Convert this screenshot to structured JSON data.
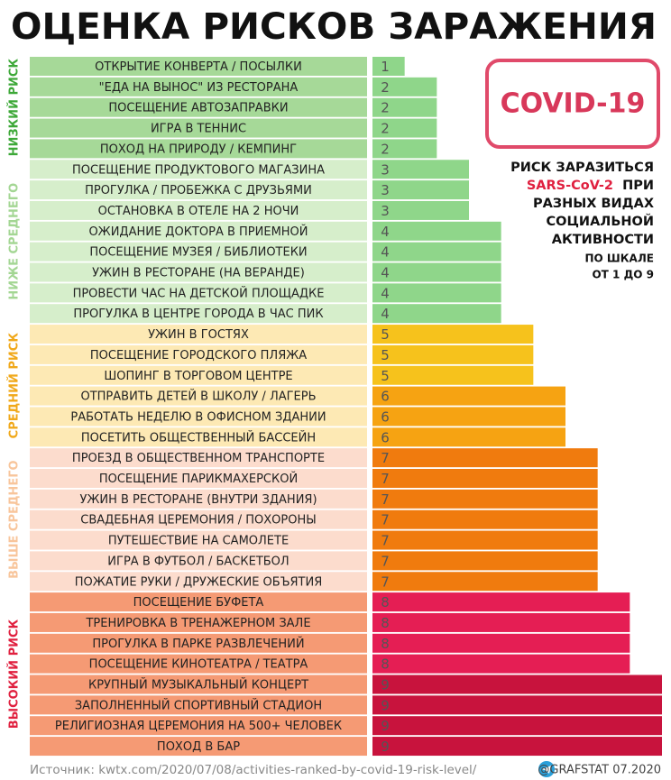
{
  "chart_data": {
    "type": "bar",
    "title": "ОЦЕНКА РИСКОВ ЗАРАЖЕНИЯ",
    "xlim": [
      0,
      9
    ],
    "stamp": "COVID-19",
    "note": [
      "РИСК ЗАРАЗИТЬСЯ",
      "SARS-CoV-2",
      "ПРИ",
      "РАЗНЫХ ВИДАХ",
      "СОЦИАЛЬНОЙ",
      "АКТИВНОСТИ"
    ],
    "scale_note": [
      "ПО ШКАЛЕ",
      "ОТ 1 ДО 9"
    ],
    "source": "Источник: kwtx.com/2020/07/08/activities-ranked-by-covid-19-risk-level/",
    "credit": "@GRAFSTAT 07.2020",
    "groups": [
      {
        "name": "НИЗКИЙ РИСК",
        "name_color": "#3da838",
        "color": "#a6d998",
        "categories": [
          "ОТКРЫТИЕ КОНВЕРТА / ПОСЫЛКИ",
          "\"ЕДА НА ВЫНОС\" ИЗ РЕСТОРАНА",
          "ПОСЕЩЕНИЕ АВТОЗАПРАВКИ",
          "ИГРА В ТЕННИС",
          "ПОХОД НА ПРИРОДУ / КЕМПИНГ"
        ],
        "values": [
          1,
          2,
          2,
          2,
          2
        ],
        "bar_colors": [
          "#8fd68a",
          "#8fd68a",
          "#8fd68a",
          "#8fd68a",
          "#8fd68a"
        ]
      },
      {
        "name": "НИЖЕ СРЕДНЕГО",
        "name_color": "#a3d693",
        "color": "#d6eecb",
        "categories": [
          "ПОСЕЩЕНИЕ ПРОДУКТОВОГО МАГАЗИНА",
          "ПРОГУЛКА / ПРОБЕЖКА С ДРУЗЬЯМИ",
          "ОСТАНОВКА В ОТЕЛЕ НА 2 НОЧИ",
          "ОЖИДАНИЕ ДОКТОРА В ПРИЕМНОЙ",
          "ПОСЕЩЕНИЕ МУЗЕЯ / БИБЛИОТЕКИ",
          "УЖИН В РЕСТОРАНЕ (НА ВЕРАНДЕ)",
          "ПРОВЕСТИ ЧАС НА ДЕТСКОЙ ПЛОЩАДКЕ",
          "ПРОГУЛКА В ЦЕНТРЕ ГОРОДА В ЧАС ПИК"
        ],
        "values": [
          3,
          3,
          3,
          4,
          4,
          4,
          4,
          4
        ],
        "bar_colors": [
          "#8fd68a",
          "#8fd68a",
          "#8fd68a",
          "#8fd68a",
          "#8fd68a",
          "#8fd68a",
          "#8fd68a",
          "#8fd68a"
        ]
      },
      {
        "name": "СРЕДНИЙ РИСК",
        "name_color": "#f0a81a",
        "color": "#fde9b4",
        "categories": [
          "УЖИН В ГОСТЯХ",
          "ПОСЕЩЕНИЕ ГОРОДСКОГО ПЛЯЖА",
          "ШОПИНГ В ТОРГОВОМ ЦЕНТРЕ",
          "ОТПРАВИТЬ ДЕТЕЙ В ШКОЛУ / ЛАГЕРЬ",
          "РАБОТАТЬ НЕДЕЛЮ В ОФИСНОМ ЗДАНИИ",
          "ПОСЕТИТЬ ОБЩЕСТВЕННЫЙ БАССЕЙН"
        ],
        "values": [
          5,
          5,
          5,
          6,
          6,
          6
        ],
        "bar_colors": [
          "#f6c21c",
          "#f6c21c",
          "#f6c21c",
          "#f6a312",
          "#f6a312",
          "#f6a312"
        ]
      },
      {
        "name": "ВЫШЕ СРЕДНЕГО",
        "name_color": "#f8c59b",
        "color": "#fcdccd",
        "categories": [
          "ПРОЕЗД В ОБЩЕСТВЕННОМ ТРАНСПОРТЕ",
          "ПОСЕЩЕНИЕ ПАРИКМАХЕРСКОЙ",
          "УЖИН В РЕСТОРАНЕ (ВНУТРИ ЗДАНИЯ)",
          "СВАДЕБНАЯ ЦЕРЕМОНИЯ / ПОХОРОНЫ",
          "ПУТЕШЕСТВИЕ НА САМОЛЕТЕ",
          "ИГРА В ФУТБОЛ / БАСКЕТБОЛ",
          "ПОЖАТИЕ РУКИ / ДРУЖЕСКИЕ ОБЪЯТИЯ"
        ],
        "values": [
          7,
          7,
          7,
          7,
          7,
          7,
          7
        ],
        "bar_colors": [
          "#f07b0e",
          "#f07b0e",
          "#f07b0e",
          "#f07b0e",
          "#f07b0e",
          "#f07b0e",
          "#f07b0e"
        ]
      },
      {
        "name": "ВЫСОКИЙ РИСК",
        "name_color": "#e0203f",
        "color": "#f59a74",
        "categories": [
          "ПОСЕЩЕНИЕ БУФЕТА",
          "ТРЕНИРОВКА В ТРЕНАЖЕРНОМ ЗАЛЕ",
          "ПРОГУЛКА В ПАРКЕ РАЗВЛЕЧЕНИЙ",
          "ПОСЕЩЕНИЕ КИНОТЕАТРА / ТЕАТРА",
          "КРУПНЫЙ МУЗЫКАЛЬНЫЙ КОНЦЕРТ",
          "ЗАПОЛНЕННЫЙ СПОРТИВНЫЙ СТАДИОН",
          "РЕЛИГИОЗНАЯ ЦЕРЕМОНИЯ НА 500+ ЧЕЛОВЕК",
          "ПОХОД В БАР"
        ],
        "values": [
          8,
          8,
          8,
          8,
          9,
          9,
          9,
          9
        ],
        "bar_colors": [
          "#e51e54",
          "#e51e54",
          "#e51e54",
          "#e51e54",
          "#c8133d",
          "#c8133d",
          "#c8133d",
          "#c8133d"
        ]
      }
    ]
  }
}
